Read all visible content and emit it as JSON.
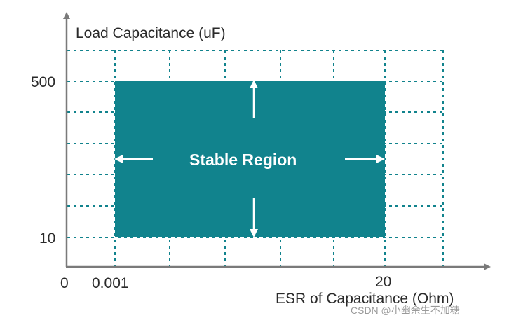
{
  "diagram": {
    "y_axis_label": "Load Capacitance (uF)",
    "x_axis_label": "ESR of Capacitance (Ohm)",
    "y_ticks": {
      "high": "500",
      "low": "10"
    },
    "x_ticks": {
      "origin": "0",
      "low": "0.001",
      "high": "20"
    },
    "region_label": "Stable Region",
    "region_color": "#11838d",
    "grid_color": "#11838d",
    "axis_color": "#7a7a7a"
  },
  "watermark": "CSDN @小幽余生不加糖"
}
